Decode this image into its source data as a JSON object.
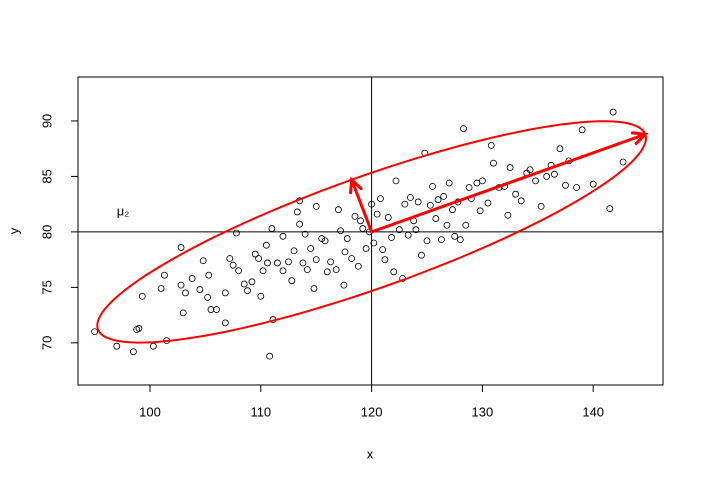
{
  "chart_data": {
    "type": "scatter",
    "xlabel": "x",
    "ylabel": "y",
    "annotation": {
      "text": "μ₂",
      "x": 97,
      "y": 81.8
    },
    "xlim": [
      93.5,
      146.3
    ],
    "ylim": [
      66.2,
      93.96
    ],
    "xticks": [
      100,
      110,
      120,
      130,
      140
    ],
    "yticks": [
      70,
      75,
      80,
      85,
      90
    ],
    "hline": 80,
    "vline": 120,
    "ellipse": {
      "center": [
        120,
        80
      ],
      "axis1": [
        24.7,
        8.8
      ],
      "axis2": [
        -1.8,
        4.7
      ],
      "color": "#ff0000"
    },
    "x": [
      95,
      97,
      98.5,
      99,
      98.8,
      99.3,
      100.3,
      101,
      101.3,
      101.5,
      102.8,
      102.8,
      103,
      103.2,
      103.8,
      104.5,
      104.8,
      105.2,
      105.3,
      105.5,
      106,
      106.8,
      106.8,
      107.2,
      107.5,
      107.8,
      108,
      108.5,
      108.8,
      109.2,
      109.5,
      109.8,
      110,
      110.2,
      110.5,
      110.6,
      110.8,
      111,
      111.1,
      111.5,
      112,
      112,
      112.5,
      112.8,
      113,
      113.3,
      113.5,
      113.5,
      113.8,
      114,
      114.2,
      114.5,
      114.8,
      115,
      115,
      115.5,
      115.8,
      116,
      116.3,
      116.8,
      117,
      117.2,
      117.5,
      117.6,
      117.8,
      118.2,
      118.5,
      118.8,
      119,
      119.2,
      119.5,
      119.8,
      120,
      120.2,
      120.5,
      120.8,
      121,
      121.2,
      121.5,
      121.8,
      122,
      122.2,
      122.5,
      122.8,
      123,
      123.3,
      123.5,
      123.8,
      124,
      124.2,
      124.5,
      124.8,
      125,
      125.3,
      125.5,
      125.8,
      126,
      126.3,
      126.5,
      126.8,
      127,
      127.3,
      127.5,
      127.8,
      128,
      128.3,
      128.5,
      128.8,
      129,
      129.5,
      129.8,
      130,
      130.5,
      130.8,
      131,
      131.5,
      132,
      132.3,
      132.5,
      133,
      133.5,
      134,
      134.3,
      134.8,
      135.3,
      135.8,
      136.2,
      136.5,
      137,
      137.5,
      137.8,
      138.5,
      139,
      140,
      141.5,
      141.8,
      142.7
    ],
    "y": [
      71,
      69.7,
      69.2,
      71.3,
      71.2,
      74.2,
      69.7,
      74.9,
      76.1,
      70.2,
      78.6,
      75.2,
      72.7,
      74.5,
      75.8,
      74.8,
      77.4,
      74.1,
      76.1,
      73,
      73,
      74.5,
      71.8,
      77.6,
      77,
      79.9,
      76.5,
      75.3,
      74.7,
      75.5,
      78,
      77.6,
      74.2,
      76.5,
      78.8,
      77.2,
      68.8,
      80.3,
      72.1,
      77.2,
      79.6,
      76.5,
      77.3,
      75.6,
      78.3,
      81.8,
      82.8,
      80.7,
      77.2,
      79.8,
      76.6,
      78.5,
      74.9,
      82.3,
      77.5,
      79.4,
      79.2,
      76.4,
      77.3,
      76.6,
      82,
      80.1,
      75.2,
      78.2,
      79.4,
      77.6,
      81.4,
      76.9,
      81,
      80.3,
      78.5,
      80,
      82.5,
      79,
      81.6,
      83,
      78.4,
      77.5,
      81.3,
      79.5,
      76.4,
      84.6,
      80.2,
      75.8,
      82.5,
      79.7,
      83.1,
      81,
      80.2,
      82.7,
      77.9,
      87.1,
      79.2,
      82.4,
      84.1,
      81.2,
      82.9,
      79.3,
      83.2,
      80.6,
      84.4,
      82,
      79.6,
      82.7,
      79.3,
      89.3,
      80.6,
      84,
      83,
      84.4,
      81.9,
      84.6,
      82.6,
      87.8,
      86.2,
      84,
      84.1,
      81.5,
      85.8,
      83.4,
      82.8,
      85.3,
      85.6,
      84.6,
      82.3,
      85,
      86,
      85.2,
      87.5,
      84.2,
      86.4,
      84,
      89.2,
      84.3,
      82.1,
      90.8,
      86.3
    ]
  }
}
